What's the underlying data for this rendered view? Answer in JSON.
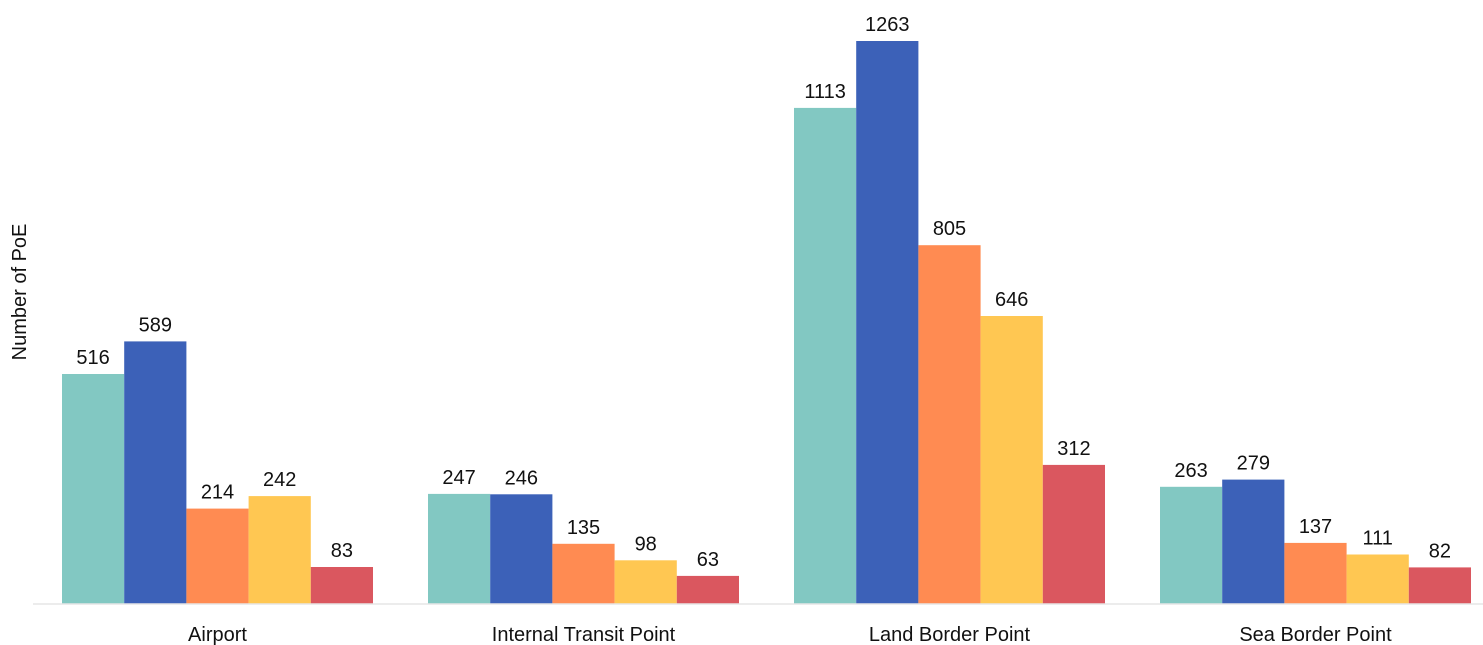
{
  "chart_data": {
    "type": "bar",
    "title": "",
    "xlabel": "",
    "ylabel": "Number of PoE",
    "categories": [
      "Airport",
      "Internal Transit Point",
      "Land Border Point",
      "Sea Border Point"
    ],
    "series": [
      {
        "color": "#82c8c2",
        "values": [
          516,
          247,
          1113,
          263
        ]
      },
      {
        "color": "#3c61b8",
        "values": [
          589,
          246,
          1263,
          279
        ]
      },
      {
        "color": "#ff8b52",
        "values": [
          214,
          135,
          805,
          137
        ]
      },
      {
        "color": "#ffc752",
        "values": [
          242,
          98,
          646,
          111
        ]
      },
      {
        "color": "#da575f",
        "values": [
          83,
          63,
          312,
          82
        ]
      }
    ],
    "ylim": [
      0,
      1263
    ],
    "grid": false,
    "legend": "none"
  }
}
